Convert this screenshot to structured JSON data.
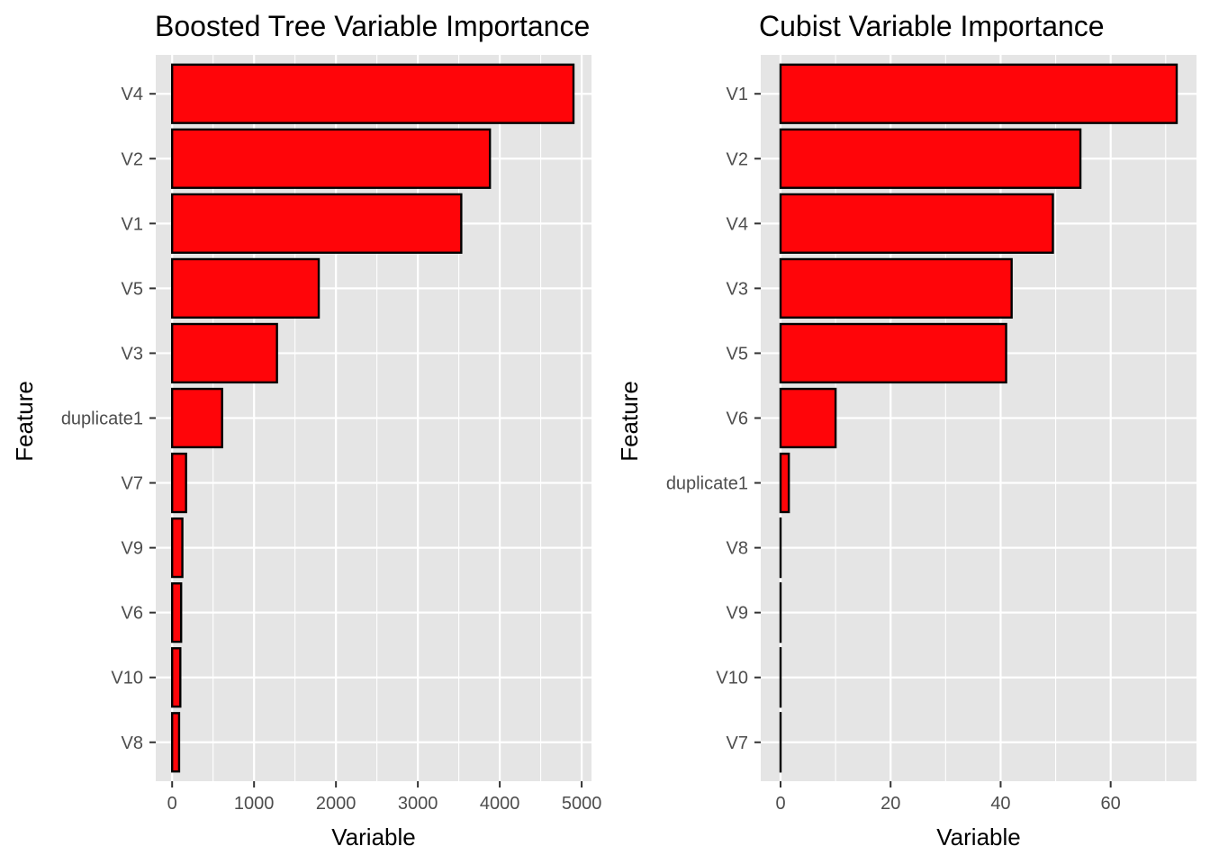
{
  "colors": {
    "bar_fill": "#ff0509",
    "bar_stroke": "#000000",
    "panel": "#e5e5e5",
    "grid": "#ffffff"
  },
  "chart_data": [
    {
      "type": "bar",
      "orientation": "horizontal",
      "title": "Boosted Tree Variable Importance",
      "xlabel": "Variable",
      "ylabel": "Feature",
      "categories": [
        "V4",
        "V2",
        "V1",
        "V5",
        "V3",
        "duplicate1",
        "V7",
        "V9",
        "V6",
        "V10",
        "V8"
      ],
      "values": [
        4900,
        3880,
        3530,
        1790,
        1280,
        610,
        170,
        125,
        110,
        100,
        85
      ],
      "xlim": [
        -200,
        5120
      ],
      "xticks": [
        0,
        1000,
        2000,
        3000,
        4000,
        5000
      ],
      "xtick_labels": [
        "0",
        "1000",
        "2000",
        "3000",
        "4000",
        "5000"
      ],
      "grid": true
    },
    {
      "type": "bar",
      "orientation": "horizontal",
      "title": "Cubist Variable Importance",
      "xlabel": "Variable",
      "ylabel": "Feature",
      "categories": [
        "V1",
        "V2",
        "V4",
        "V3",
        "V5",
        "V6",
        "duplicate1",
        "V8",
        "V9",
        "V10",
        "V7"
      ],
      "values": [
        72,
        54.5,
        49.5,
        42,
        41,
        10,
        1.5,
        0,
        0,
        0,
        0
      ],
      "xlim": [
        -3.6,
        75.6
      ],
      "xticks": [
        0,
        20,
        40,
        60
      ],
      "xtick_labels": [
        "0",
        "20",
        "40",
        "60"
      ],
      "grid": true
    }
  ]
}
